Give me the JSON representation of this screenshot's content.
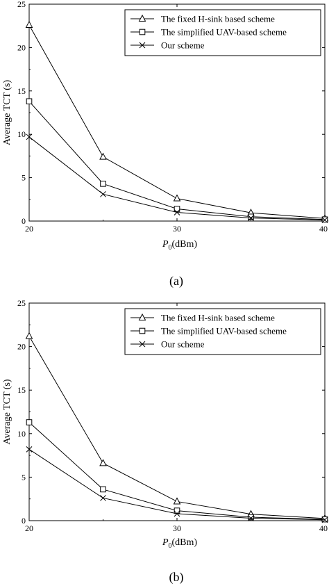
{
  "chart_data": [
    {
      "type": "line",
      "panel_label": "(a)",
      "xlabel_main": "P",
      "xlabel_sub": "0",
      "xlabel_unit": "(dBm)",
      "ylabel": "Average TCT (s)",
      "xlim": [
        20,
        40
      ],
      "ylim": [
        0,
        25
      ],
      "xticks": [
        20,
        30,
        40
      ],
      "yticks": [
        0,
        5,
        10,
        15,
        20,
        25
      ],
      "x": [
        20,
        25,
        30,
        35,
        40
      ],
      "grid": false,
      "legend_position": "top-right",
      "series": [
        {
          "name": "The fixed H-sink based scheme",
          "marker": "triangle",
          "values": [
            22.6,
            7.4,
            2.6,
            0.95,
            0.3
          ]
        },
        {
          "name": "The simplified UAV-based scheme",
          "marker": "square",
          "values": [
            13.8,
            4.3,
            1.4,
            0.5,
            0.18
          ]
        },
        {
          "name": "Our scheme",
          "marker": "x",
          "values": [
            9.7,
            3.1,
            1.0,
            0.35,
            0.12
          ]
        }
      ]
    },
    {
      "type": "line",
      "panel_label": "(b)",
      "xlabel_main": "P",
      "xlabel_sub": "0",
      "xlabel_unit": "(dBm)",
      "ylabel": "Average TCT (s)",
      "xlim": [
        20,
        40
      ],
      "ylim": [
        0,
        25
      ],
      "xticks": [
        20,
        30,
        40
      ],
      "yticks": [
        0,
        5,
        10,
        15,
        20,
        25
      ],
      "x": [
        20,
        25,
        30,
        35,
        40
      ],
      "grid": false,
      "legend_position": "top-right",
      "series": [
        {
          "name": "The fixed H-sink based scheme",
          "marker": "triangle",
          "values": [
            21.2,
            6.6,
            2.2,
            0.75,
            0.25
          ]
        },
        {
          "name": "The simplified UAV-based scheme",
          "marker": "square",
          "values": [
            11.3,
            3.6,
            1.15,
            0.4,
            0.15
          ]
        },
        {
          "name": "Our scheme",
          "marker": "x",
          "values": [
            8.2,
            2.6,
            0.8,
            0.28,
            0.1
          ]
        }
      ]
    }
  ]
}
